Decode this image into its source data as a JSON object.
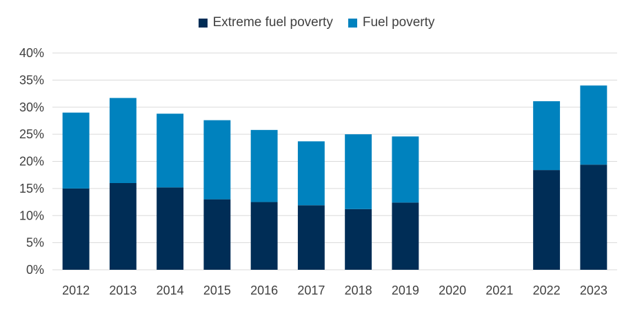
{
  "chart_data": {
    "type": "bar",
    "stacked": true,
    "categories": [
      "2012",
      "2013",
      "2014",
      "2015",
      "2016",
      "2017",
      "2018",
      "2019",
      "2020",
      "2021",
      "2022",
      "2023"
    ],
    "series": [
      {
        "name": "Extreme fuel poverty",
        "color": "#002D56",
        "values": [
          15.0,
          16.0,
          15.2,
          13.0,
          12.5,
          11.9,
          11.2,
          12.4,
          null,
          null,
          18.4,
          19.4
        ]
      },
      {
        "name": "Fuel poverty",
        "color": "#0082BE",
        "values": [
          14.0,
          15.7,
          13.6,
          14.6,
          13.3,
          11.8,
          13.8,
          12.2,
          null,
          null,
          12.7,
          14.6
        ]
      }
    ],
    "totals": [
      29.0,
      31.7,
      28.8,
      27.6,
      25.8,
      23.7,
      25.0,
      24.6,
      null,
      null,
      31.1,
      34.0
    ],
    "yticks": [
      "0%",
      "5%",
      "10%",
      "15%",
      "20%",
      "25%",
      "30%",
      "35%",
      "40%"
    ],
    "ylim": [
      0,
      40
    ],
    "grid": true,
    "legend_position": "top-center"
  }
}
